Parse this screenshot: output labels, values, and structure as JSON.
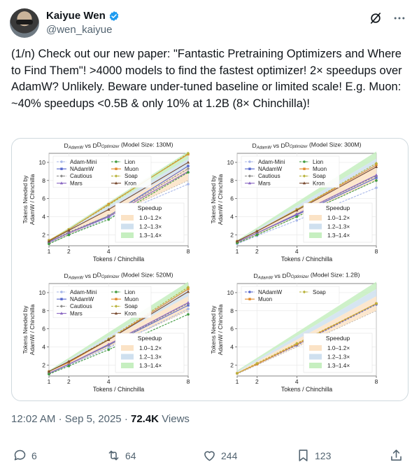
{
  "author": {
    "name": "Kaiyue Wen",
    "handle": "@wen_kaiyue"
  },
  "tweet": {
    "text": "(1/n) Check out our new paper: \"Fantastic Pretraining Optimizers and Where to Find Them\"! >4000 models to find the fastest optimizer! 2× speedups over AdamW? Unlikely. Beware under-tuned baseline or limited scale! E.g. Muon: ~40% speedups <0.5B & only 10% at 1.2B (8× Chinchilla)!"
  },
  "meta": {
    "time": "12:02 AM",
    "date": "Sep 5, 2025",
    "views_count": "72.4K",
    "views_label": "Views"
  },
  "actions": {
    "replies": "6",
    "reposts": "64",
    "likes": "244",
    "bookmarks": "123"
  },
  "colors": {
    "text": "#0f1419",
    "secondary": "#536471",
    "verified": "#1d9bf0",
    "band_1": "#fbe3c6",
    "band_2": "#cfe0ef",
    "band_3": "#c6efc0"
  },
  "chart_data": [
    {
      "type": "line",
      "title_prefix": "D",
      "title_sub1": "AdamW",
      "title_mid": " vs D",
      "title_sub2": "Optimizer",
      "title_suffix": " (Model Size: 130M)",
      "xlabel": "Tokens / Chinchilla",
      "ylabel_1": "Tokens Needed by",
      "ylabel_2": "AdamW / Chinchilla",
      "x_ticks": [
        1,
        2,
        4,
        8
      ],
      "y_ticks": [
        2,
        4,
        6,
        8,
        10
      ],
      "xlim": [
        1,
        8
      ],
      "ylim": [
        0.8,
        11
      ],
      "band_legend_title": "Speedup",
      "bands": [
        {
          "label": "1.0–1.2×",
          "low": 1.0,
          "high": 1.2,
          "color": "#fbe3c6"
        },
        {
          "label": "1.2–1.3×",
          "low": 1.2,
          "high": 1.3,
          "color": "#cfe0ef"
        },
        {
          "label": "1.3–1.4×",
          "low": 1.3,
          "high": 1.4,
          "color": "#c6efc0"
        }
      ],
      "x": [
        1,
        2,
        4,
        8
      ],
      "series": [
        {
          "name": "Adam-Mini",
          "color": "#a7b6e8",
          "values": [
            1.1,
            2.0,
            3.9,
            7.6
          ]
        },
        {
          "name": "NAdamW",
          "color": "#5566cc",
          "values": [
            1.2,
            2.2,
            4.1,
            9.6
          ]
        },
        {
          "name": "Cautious",
          "color": "#8b8b8b",
          "values": [
            1.2,
            2.3,
            4.1,
            9.3
          ]
        },
        {
          "name": "Mars",
          "color": "#8a67c2",
          "values": [
            1.2,
            2.2,
            4.0,
            9.0
          ]
        },
        {
          "name": "Lion",
          "color": "#3f9a3f",
          "values": [
            1.0,
            2.0,
            3.7,
            8.9
          ]
        },
        {
          "name": "Muon",
          "color": "#e08a2c",
          "values": [
            1.4,
            2.6,
            5.4,
            10.9
          ]
        },
        {
          "name": "Soap",
          "color": "#b8b23a",
          "values": [
            1.4,
            2.6,
            5.3,
            11.0
          ]
        },
        {
          "name": "Kron",
          "color": "#7a4c33",
          "values": [
            1.3,
            2.5,
            4.8,
            10.0
          ]
        }
      ]
    },
    {
      "type": "line",
      "title_prefix": "D",
      "title_sub1": "AdamW",
      "title_mid": " vs D",
      "title_sub2": "Optimizer",
      "title_suffix": " (Model Size: 300M)",
      "xlabel": "Tokens / Chinchilla",
      "ylabel_1": "Tokens Needed by",
      "ylabel_2": "AdamW / Chinchilla",
      "x_ticks": [
        1,
        2,
        4,
        8
      ],
      "y_ticks": [
        2,
        4,
        6,
        8,
        10
      ],
      "xlim": [
        1,
        8
      ],
      "ylim": [
        0.8,
        11
      ],
      "band_legend_title": "Speedup",
      "bands": [
        {
          "label": "1.0–1.2×",
          "low": 1.0,
          "high": 1.2,
          "color": "#fbe3c6"
        },
        {
          "label": "1.2–1.3×",
          "low": 1.2,
          "high": 1.3,
          "color": "#cfe0ef"
        },
        {
          "label": "1.3–1.4×",
          "low": 1.3,
          "high": 1.4,
          "color": "#c6efc0"
        }
      ],
      "x": [
        1,
        2,
        4,
        8
      ],
      "series": [
        {
          "name": "Adam-Mini",
          "color": "#a7b6e8",
          "values": [
            1.0,
            1.9,
            3.6,
            7.2
          ]
        },
        {
          "name": "NAdamW",
          "color": "#5566cc",
          "values": [
            1.2,
            2.2,
            4.2,
            8.3
          ]
        },
        {
          "name": "Cautious",
          "color": "#8b8b8b",
          "values": [
            1.2,
            2.2,
            4.3,
            8.5
          ]
        },
        {
          "name": "Mars",
          "color": "#8a67c2",
          "values": [
            1.2,
            2.2,
            4.3,
            8.6
          ]
        },
        {
          "name": "Lion",
          "color": "#3f9a3f",
          "values": [
            1.1,
            2.0,
            4.0,
            8.0
          ]
        },
        {
          "name": "Muon",
          "color": "#e08a2c",
          "values": [
            1.3,
            2.4,
            4.8,
            9.7
          ]
        },
        {
          "name": "Soap",
          "color": "#b8b23a",
          "values": [
            1.3,
            2.4,
            4.8,
            9.9
          ]
        },
        {
          "name": "Kron",
          "color": "#7a4c33",
          "values": [
            1.3,
            2.4,
            4.7,
            9.5
          ]
        }
      ]
    },
    {
      "type": "line",
      "title_prefix": "D",
      "title_sub1": "AdamW",
      "title_mid": " vs D",
      "title_sub2": "Optimizer",
      "title_suffix": " (Model Size: 520M)",
      "xlabel": "Tokens / Chinchilla",
      "ylabel_1": "Tokens Needed by",
      "ylabel_2": "AdamW / Chinchilla",
      "x_ticks": [
        1,
        2,
        4,
        8
      ],
      "y_ticks": [
        2,
        4,
        6,
        8,
        10
      ],
      "xlim": [
        1,
        8
      ],
      "ylim": [
        0.8,
        11
      ],
      "band_legend_title": "Speedup",
      "bands": [
        {
          "label": "1.0–1.2×",
          "low": 1.0,
          "high": 1.2,
          "color": "#fbe3c6"
        },
        {
          "label": "1.2–1.3×",
          "low": 1.2,
          "high": 1.3,
          "color": "#cfe0ef"
        },
        {
          "label": "1.3–1.4×",
          "low": 1.3,
          "high": 1.4,
          "color": "#c6efc0"
        }
      ],
      "x": [
        1,
        2,
        4,
        8
      ],
      "series": [
        {
          "name": "Adam-Mini",
          "color": "#a7b6e8",
          "values": [
            1.0,
            2.0,
            3.9,
            8.2
          ]
        },
        {
          "name": "NAdamW",
          "color": "#5566cc",
          "values": [
            1.1,
            2.1,
            4.2,
            8.6
          ]
        },
        {
          "name": "Cautious",
          "color": "#8b8b8b",
          "values": [
            1.1,
            2.1,
            4.2,
            8.8
          ]
        },
        {
          "name": "Mars",
          "color": "#8a67c2",
          "values": [
            1.1,
            2.1,
            4.3,
            8.9
          ]
        },
        {
          "name": "Lion",
          "color": "#3f9a3f",
          "values": [
            1.0,
            1.9,
            3.7,
            7.6
          ]
        },
        {
          "name": "Muon",
          "color": "#e08a2c",
          "values": [
            1.3,
            2.3,
            4.8,
            10.4
          ]
        },
        {
          "name": "Soap",
          "color": "#b8b23a",
          "values": [
            1.3,
            2.4,
            4.9,
            10.6
          ]
        },
        {
          "name": "Kron",
          "color": "#7a4c33",
          "values": [
            1.3,
            2.4,
            4.8,
            10.1
          ]
        }
      ]
    },
    {
      "type": "line",
      "title_prefix": "D",
      "title_sub1": "AdamW",
      "title_mid": " vs D",
      "title_sub2": "Optimizer",
      "title_suffix": " (Model Size: 1.2B)",
      "xlabel": "Tokens / Chinchilla",
      "ylabel_1": "Tokens Needed by",
      "ylabel_2": "AdamW / Chinchilla",
      "x_ticks": [
        1,
        2,
        4,
        8
      ],
      "y_ticks": [
        2,
        4,
        6,
        8,
        10
      ],
      "xlim": [
        1,
        8
      ],
      "ylim": [
        0.8,
        11
      ],
      "band_legend_title": "Speedup",
      "bands": [
        {
          "label": "1.0–1.2×",
          "low": 1.0,
          "high": 1.2,
          "color": "#fbe3c6"
        },
        {
          "label": "1.2–1.3×",
          "low": 1.2,
          "high": 1.3,
          "color": "#cfe0ef"
        },
        {
          "label": "1.3–1.4×",
          "low": 1.3,
          "high": 1.4,
          "color": "#c6efc0"
        }
      ],
      "x": [
        1,
        2,
        4,
        8
      ],
      "series": [
        {
          "name": "NAdamW",
          "color": "#5566cc",
          "values": [
            1.1,
            2.1,
            4.2,
            8.7
          ]
        },
        {
          "name": "Muon",
          "color": "#e08a2c",
          "values": [
            1.1,
            2.1,
            4.3,
            8.8
          ]
        },
        {
          "name": "Soap",
          "color": "#b8b23a",
          "values": [
            1.1,
            2.2,
            4.4,
            8.8
          ]
        }
      ]
    }
  ]
}
